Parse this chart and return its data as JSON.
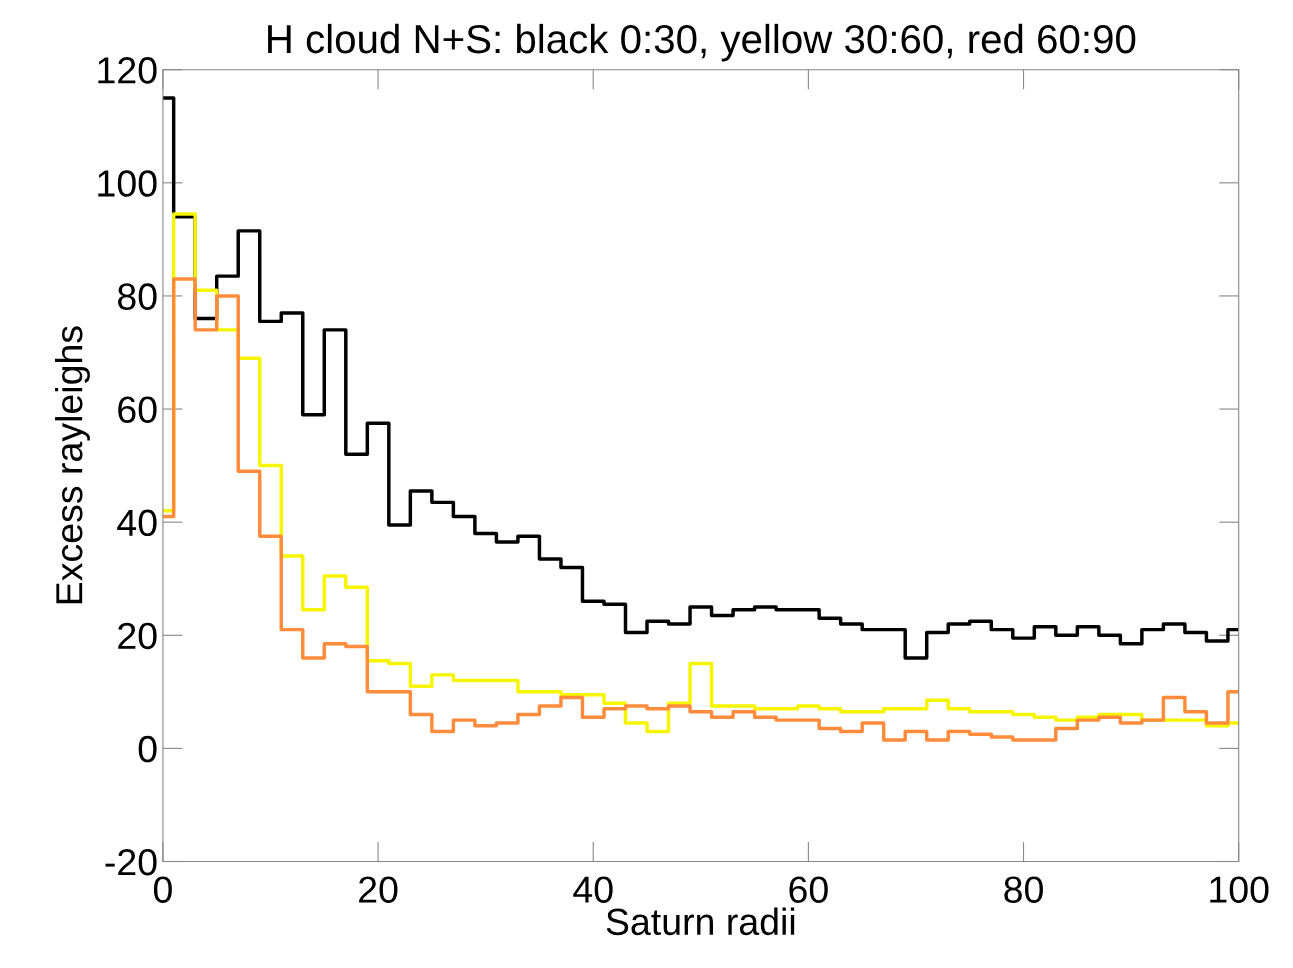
{
  "chart_data": {
    "type": "step",
    "title": "H cloud N+S: black 0:30, yellow 30:60, red 60:90",
    "xlabel": "Saturn radii",
    "ylabel": "Excess rayleighs",
    "x": [
      0,
      1,
      3,
      5,
      7,
      9,
      11,
      13,
      15,
      17,
      19,
      21,
      23,
      25,
      27,
      29,
      31,
      33,
      35,
      37,
      39,
      41,
      43,
      45,
      47,
      49,
      51,
      53,
      55,
      57,
      59,
      61,
      63,
      65,
      67,
      69,
      71,
      73,
      75,
      77,
      79,
      81,
      83,
      85,
      87,
      89,
      91,
      93,
      95,
      97,
      99,
      100
    ],
    "series": [
      {
        "color": "#000000",
        "values": [
          115,
          94,
          76,
          83.5,
          91.5,
          75.5,
          77,
          59,
          74,
          52,
          57.5,
          39.5,
          45.5,
          43.5,
          41,
          38,
          36.5,
          37.5,
          33.5,
          32,
          26,
          25.5,
          20.5,
          22.5,
          22,
          25,
          23.5,
          24.5,
          25,
          24.5,
          24.5,
          23,
          22,
          21,
          21,
          16,
          20.5,
          22,
          22.5,
          21,
          19.5,
          21.5,
          20,
          21.5,
          20,
          18.5,
          21,
          22,
          20.5,
          19,
          21,
          21
        ]
      },
      {
        "color": "#f5f500",
        "values": [
          42,
          94.5,
          81,
          74,
          69,
          50,
          34,
          24.5,
          30.5,
          28.5,
          15.5,
          15,
          11,
          13,
          12,
          12,
          12,
          10,
          10,
          9.5,
          9.5,
          8,
          4.5,
          3,
          8,
          15,
          7.5,
          7.5,
          7,
          7,
          7.5,
          7,
          6.5,
          6.5,
          7,
          7,
          8.5,
          7,
          6.5,
          6.5,
          6,
          5.5,
          5,
          5.5,
          6,
          6,
          5,
          5,
          5,
          4,
          4.5,
          4.5
        ]
      },
      {
        "color": "#ff8c3c",
        "values": [
          41,
          83,
          74,
          80,
          49,
          37.5,
          21,
          16,
          18.5,
          18,
          10,
          10,
          6,
          3,
          5,
          4,
          4.5,
          6,
          7.5,
          9,
          5.5,
          7,
          7.5,
          7,
          7.5,
          6.5,
          5.5,
          6.5,
          5.5,
          5,
          5,
          3.5,
          3,
          4.5,
          1.5,
          3,
          1.5,
          3,
          2.5,
          2,
          1.5,
          1.5,
          3.5,
          5,
          5.5,
          4.5,
          5,
          9,
          6.5,
          4.5,
          10,
          10
        ]
      }
    ],
    "xlim": [
      0,
      100
    ],
    "ylim": [
      -20,
      120
    ],
    "xticks": [
      0,
      20,
      40,
      60,
      80,
      100
    ],
    "yticks": [
      -20,
      0,
      20,
      40,
      60,
      80,
      100,
      120
    ],
    "grid": false,
    "legend": false
  }
}
